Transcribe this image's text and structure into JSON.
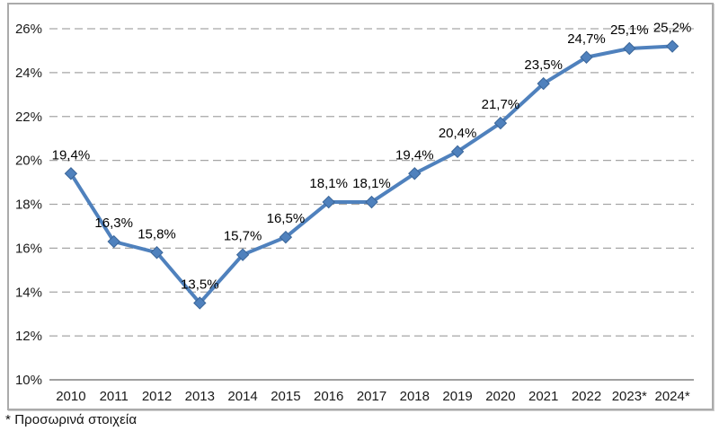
{
  "chart_data": {
    "type": "line",
    "title": "",
    "xlabel": "",
    "ylabel": "",
    "categories": [
      "2010",
      "2011",
      "2012",
      "2013",
      "2014",
      "2015",
      "2016",
      "2017",
      "2018",
      "2019",
      "2020",
      "2021",
      "2022",
      "2023*",
      "2024*"
    ],
    "values": [
      19.4,
      16.3,
      15.8,
      13.5,
      15.7,
      16.5,
      18.1,
      18.1,
      19.4,
      20.4,
      21.7,
      23.5,
      24.7,
      25.1,
      25.2
    ],
    "point_labels": [
      "19,4%",
      "16,3%",
      "15,8%",
      "13,5%",
      "15,7%",
      "16,5%",
      "18,1%",
      "18,1%",
      "19,4%",
      "20,4%",
      "21,7%",
      "23,5%",
      "24,7%",
      "25,1%",
      "25,2%"
    ],
    "y_ticks": [
      "10%",
      "12%",
      "14%",
      "16%",
      "18%",
      "20%",
      "22%",
      "24%",
      "26%"
    ],
    "ylim": [
      10,
      26
    ],
    "y_tick_step": 2,
    "grid": "horizontal-dashed",
    "legend": "none",
    "marker": "diamond",
    "series_color": "#4F81BD",
    "marker_edge_color": "#3A6598",
    "gridline_color": "#A6A6A6",
    "axis_line_color": "#808080",
    "tick_label_color": "#1a1a1a",
    "label_color": "#000000"
  },
  "footnote": {
    "text": "* Προσωρινά στοιχεία"
  }
}
